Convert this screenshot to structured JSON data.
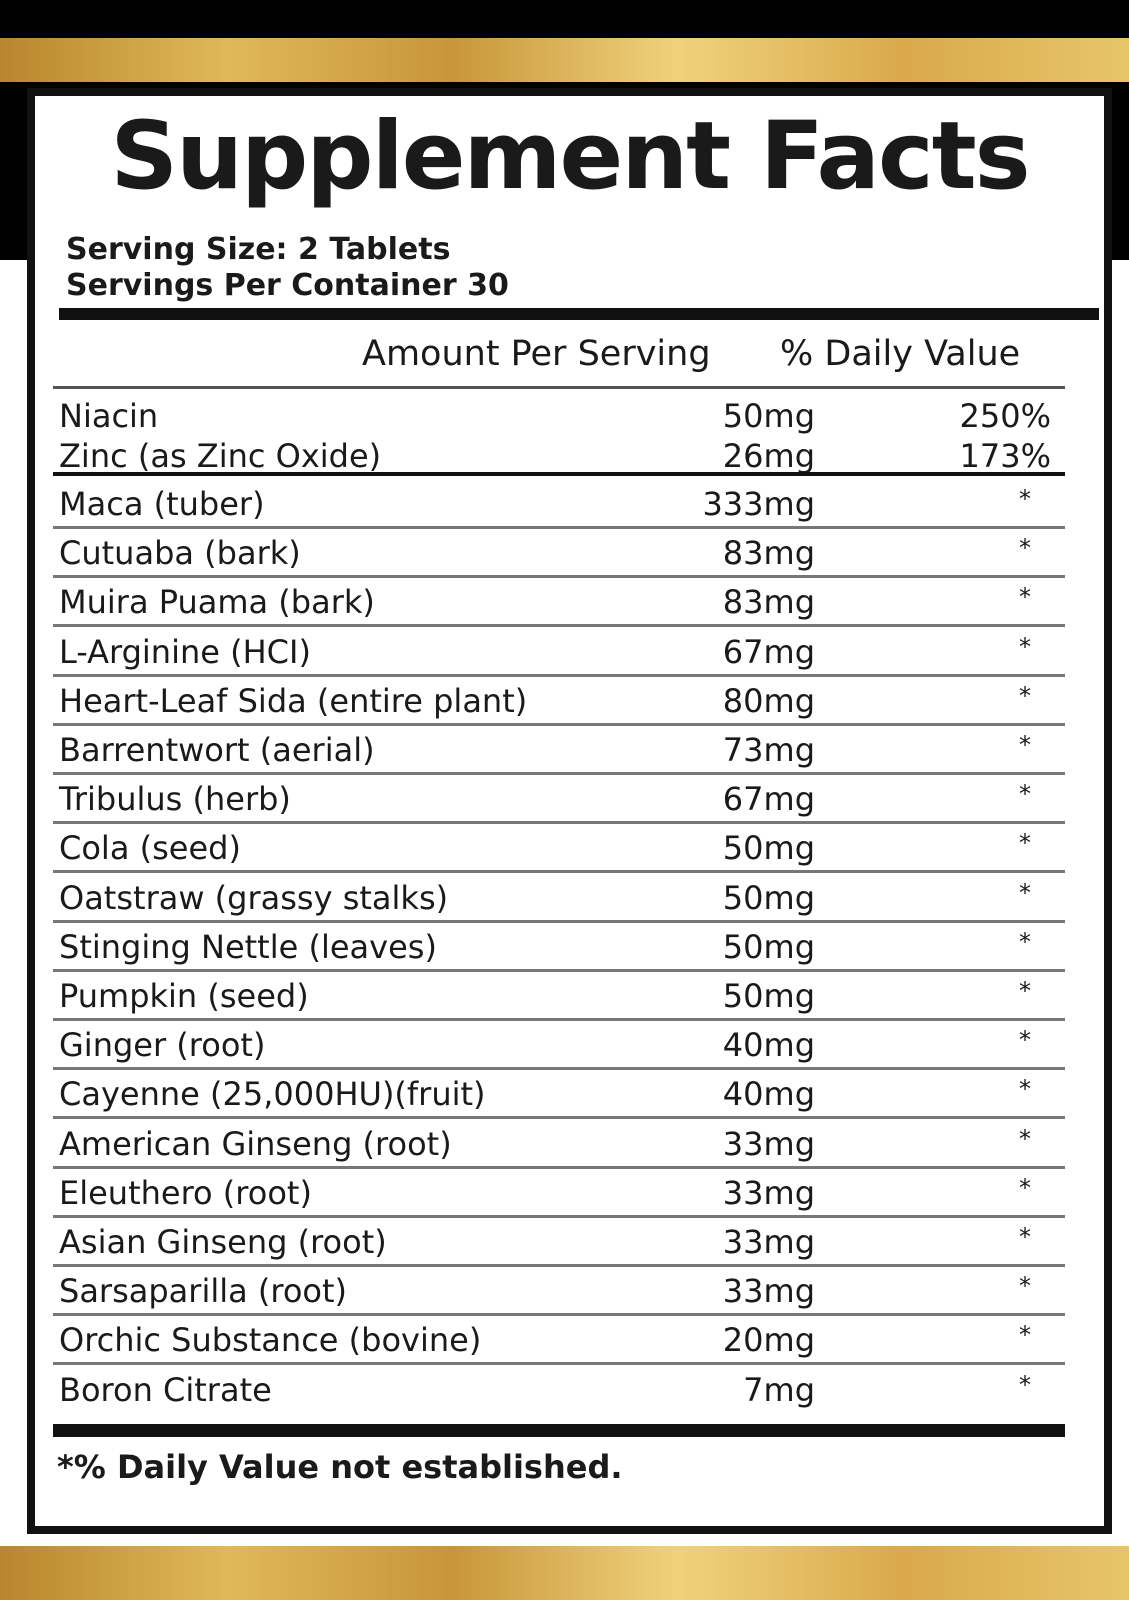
{
  "title": "Supplement Facts",
  "serving_size": "Serving Size: 2 Tablets",
  "servings_per_container": "Servings Per Container 30",
  "header": {
    "amount": "Amount Per Serving",
    "daily_value": "% Daily Value"
  },
  "vitamins": [
    {
      "name": "Niacin",
      "amount": "50mg",
      "dv": "250%"
    },
    {
      "name": "Zinc (as Zinc Oxide)",
      "amount": "26mg",
      "dv": "173%"
    }
  ],
  "ingredients": [
    {
      "name": "Maca (tuber)",
      "amount": "333mg",
      "dv": "*"
    },
    {
      "name": "Cutuaba (bark)",
      "amount": "83mg",
      "dv": "*"
    },
    {
      "name": "Muira Puama (bark)",
      "amount": "83mg",
      "dv": "*"
    },
    {
      "name": "L-Arginine (HCI)",
      "amount": "67mg",
      "dv": "*"
    },
    {
      "name": "Heart-Leaf Sida (entire plant)",
      "amount": "80mg",
      "dv": "*"
    },
    {
      "name": "Barrentwort (aerial)",
      "amount": "73mg",
      "dv": "*"
    },
    {
      "name": "Tribulus (herb)",
      "amount": "67mg",
      "dv": "*"
    },
    {
      "name": "Cola (seed)",
      "amount": "50mg",
      "dv": "*"
    },
    {
      "name": "Oatstraw (grassy stalks)",
      "amount": "50mg",
      "dv": "*"
    },
    {
      "name": "Stinging Nettle (leaves)",
      "amount": "50mg",
      "dv": "*"
    },
    {
      "name": "Pumpkin (seed)",
      "amount": "50mg",
      "dv": "*"
    },
    {
      "name": "Ginger (root)",
      "amount": "40mg",
      "dv": "*"
    },
    {
      "name": "Cayenne (25,000HU)(fruit)",
      "amount": "40mg",
      "dv": "*"
    },
    {
      "name": "American Ginseng (root)",
      "amount": "33mg",
      "dv": "*"
    },
    {
      "name": "Eleuthero (root)",
      "amount": "33mg",
      "dv": "*"
    },
    {
      "name": "Asian Ginseng (root)",
      "amount": "33mg",
      "dv": "*"
    },
    {
      "name": "Sarsaparilla (root)",
      "amount": "33mg",
      "dv": "*"
    },
    {
      "name": "Orchic Substance (bovine)",
      "amount": "20mg",
      "dv": "*"
    },
    {
      "name": "Boron Citrate",
      "amount": "7mg",
      "dv": "*"
    }
  ],
  "footnote": "*% Daily Value not established."
}
